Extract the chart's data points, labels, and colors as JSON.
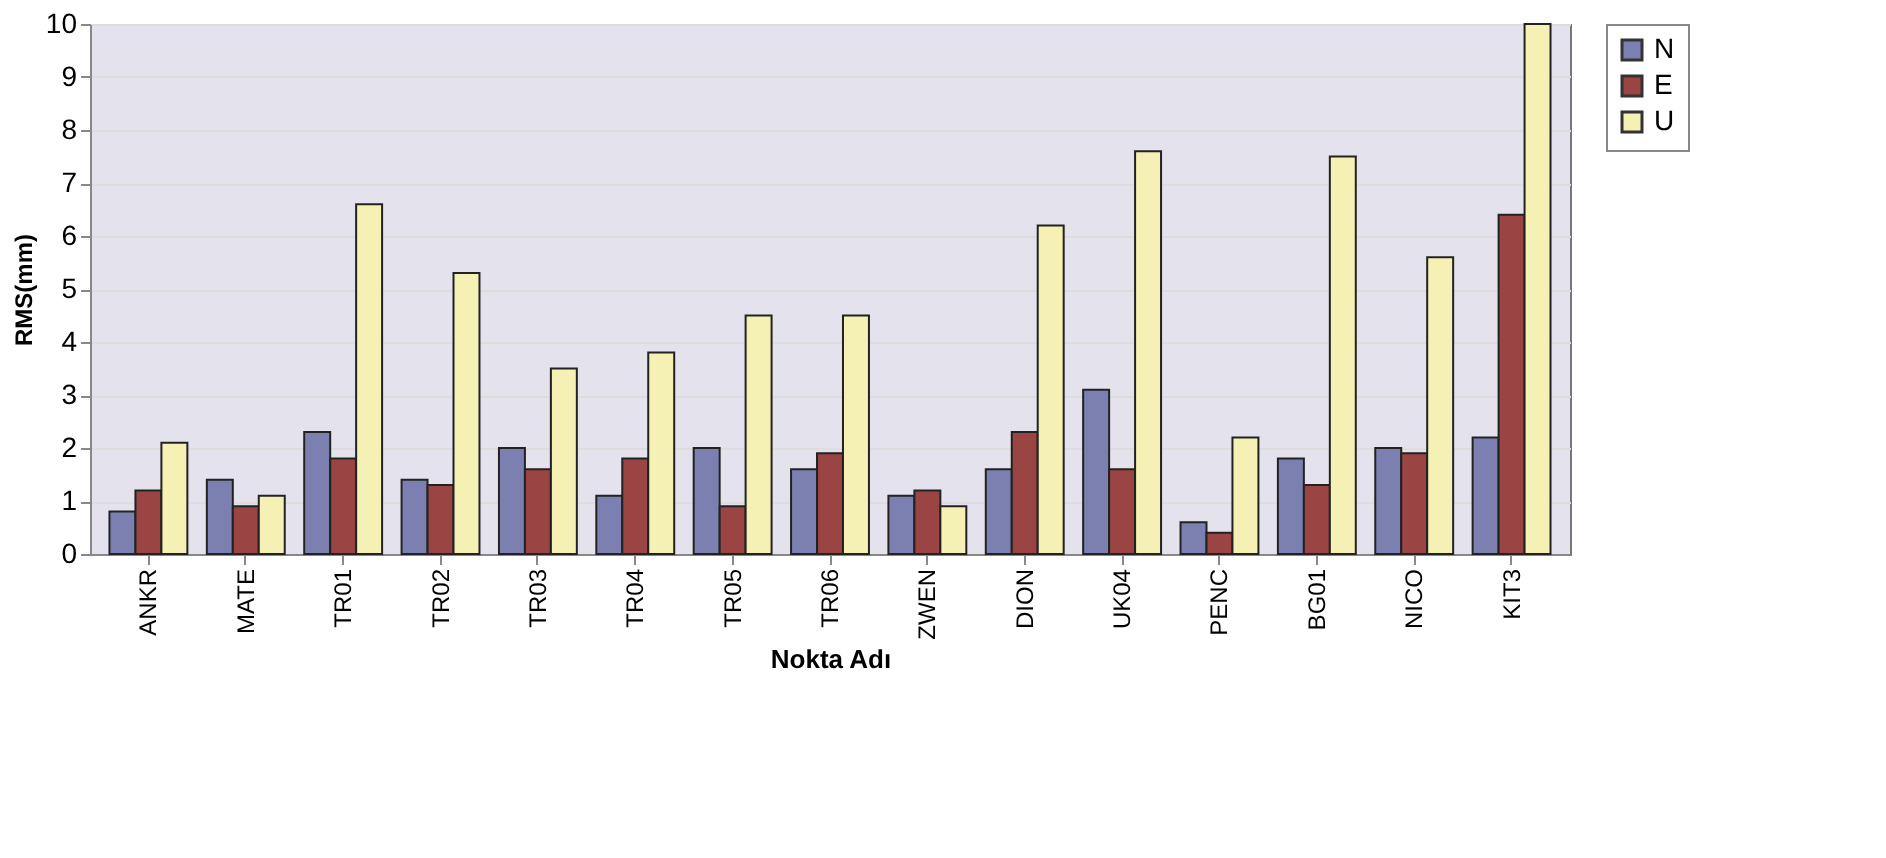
{
  "chart_data": {
    "type": "bar",
    "xlabel": "Nokta Adı",
    "ylabel": "RMS(mm)",
    "categories": [
      "ANKR",
      "MATE",
      "TR01",
      "TR02",
      "TR03",
      "TR04",
      "TR05",
      "TR06",
      "ZWEN",
      "DION",
      "UK04",
      "PENC",
      "BG01",
      "NICO",
      "KIT3"
    ],
    "series": [
      {
        "name": "N",
        "color": "#7b80b0",
        "values": [
          0.8,
          1.4,
          2.3,
          1.4,
          2.0,
          1.1,
          2.0,
          1.6,
          1.1,
          1.6,
          3.1,
          0.6,
          1.8,
          2.0,
          2.2
        ]
      },
      {
        "name": "E",
        "color": "#9a4444",
        "values": [
          1.2,
          0.9,
          1.8,
          1.3,
          1.6,
          1.8,
          0.9,
          1.9,
          1.2,
          2.3,
          1.6,
          0.4,
          1.3,
          1.9,
          6.4
        ]
      },
      {
        "name": "U",
        "color": "#f5f0b4",
        "values": [
          2.1,
          1.1,
          6.6,
          5.3,
          3.5,
          3.8,
          4.5,
          4.5,
          0.9,
          6.2,
          7.6,
          2.2,
          7.5,
          5.6,
          10.0
        ]
      }
    ],
    "ylim": [
      0,
      10
    ],
    "yticks": [
      0,
      1,
      2,
      3,
      4,
      5,
      6,
      7,
      8,
      9,
      10
    ],
    "grid": "y",
    "legend": "right"
  }
}
